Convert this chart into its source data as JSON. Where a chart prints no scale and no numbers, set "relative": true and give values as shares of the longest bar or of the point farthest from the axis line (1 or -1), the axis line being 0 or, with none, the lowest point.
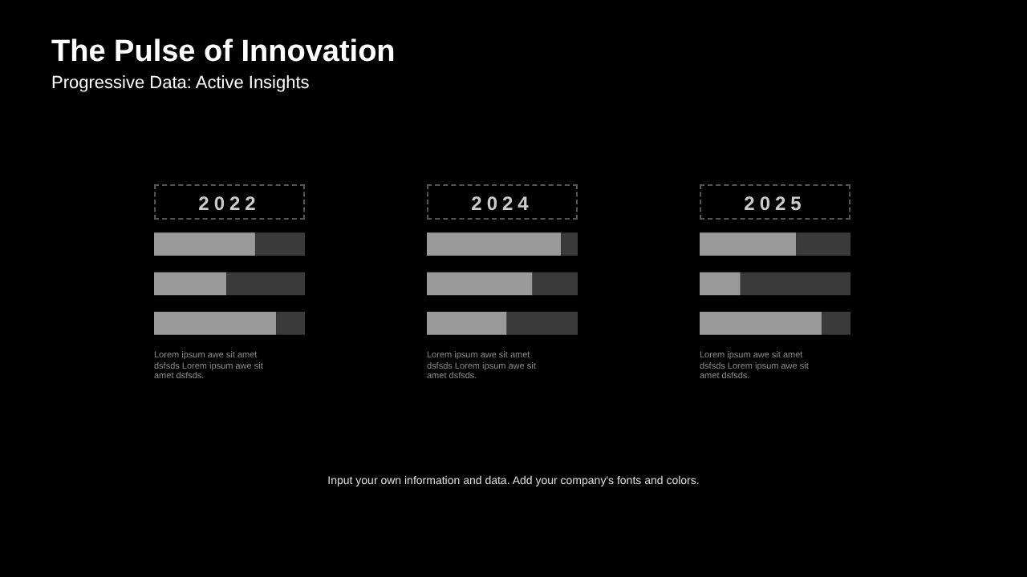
{
  "chart_data": [
    {
      "type": "other",
      "title": "The Pulse of Innovation",
      "subtitle": "Progressive Data: Active Insights",
      "annotations": [
        "Input your own information and data. Add your company's fonts and colors."
      ]
    },
    {
      "type": "bar",
      "title": "2022",
      "orientation": "horizontal",
      "stacked": true,
      "relative": true,
      "categories": [
        null,
        null,
        null
      ],
      "series": [
        {
          "color": "#9a9a9a",
          "values": [
            0.67,
            0.48,
            0.81
          ]
        },
        {
          "color": "#3a3a3a",
          "values": [
            0.33,
            0.52,
            0.19
          ]
        }
      ],
      "annotations": [
        "Lorem ipsum awe sit amet dsfsds Lorem ipsum awe sit amet dsfsds."
      ]
    },
    {
      "type": "bar",
      "title": "2024",
      "orientation": "horizontal",
      "stacked": true,
      "relative": true,
      "categories": [
        null,
        null,
        null
      ],
      "series": [
        {
          "color": "#9a9a9a",
          "values": [
            0.89,
            0.7,
            0.53
          ]
        },
        {
          "color": "#3a3a3a",
          "values": [
            0.11,
            0.3,
            0.47
          ]
        }
      ],
      "annotations": [
        "Lorem ipsum awe sit amet dsfsds Lorem ipsum awe sit amet dsfsds."
      ]
    },
    {
      "type": "bar",
      "title": "2025",
      "orientation": "horizontal",
      "stacked": true,
      "relative": true,
      "categories": [
        null,
        null,
        null
      ],
      "series": [
        {
          "color": "#9a9a9a",
          "values": [
            0.64,
            0.27,
            0.81
          ]
        },
        {
          "color": "#3a3a3a",
          "values": [
            0.36,
            0.73,
            0.19
          ]
        }
      ],
      "annotations": [
        "Lorem ipsum awe sit amet dsfsds Lorem ipsum awe sit amet dsfsds."
      ]
    }
  ]
}
